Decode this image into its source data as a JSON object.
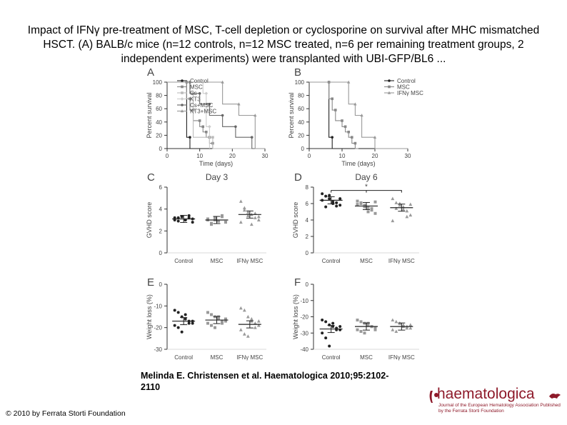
{
  "title": "Impact of IFNγ pre-treatment of MSC, T-cell depletion or cyclosporine on survival after MHC mismatched HSCT. (A) BALB/c mice (n=12 controls, n=12 MSC treated, n=6 per remaining treatment groups, 2 independent experiments) were transplanted with UBI-GFP/BL6 ...",
  "citation": "Melinda E. Christensen et al. Haematologica 2010;95:2102-2110",
  "copyright": "© 2010 by Ferrata Storti Foundation",
  "logo": {
    "name": "haematologica",
    "tagline": "Journal of the European Hematology Association Published by the Ferrata Storti Foundation"
  },
  "colors": {
    "control": "#222222",
    "msc": "#888888",
    "ifn": "#9a9a9a",
    "logo": "#8e1a2a"
  },
  "chart_data": [
    {
      "panel": "A",
      "type": "line",
      "xlabel": "Time (days)",
      "ylabel": "Percent survival",
      "xlim": [
        0,
        30
      ],
      "ylim": [
        0,
        100
      ],
      "xticks": [
        0,
        10,
        20,
        30
      ],
      "yticks": [
        0,
        20,
        40,
        60,
        80,
        100
      ],
      "series": [
        {
          "name": "Control",
          "x": [
            0,
            5,
            6,
            7,
            8,
            30
          ],
          "y": [
            100,
            100,
            17,
            0,
            0,
            0
          ]
        },
        {
          "name": "MSC",
          "x": [
            0,
            5,
            6,
            7,
            8,
            10,
            11,
            12,
            13,
            14,
            15
          ],
          "y": [
            100,
            100,
            75,
            58,
            42,
            33,
            25,
            17,
            8,
            0,
            0
          ]
        },
        {
          "name": "Cs",
          "x": [
            0,
            6,
            7,
            8,
            14,
            30
          ],
          "y": [
            100,
            100,
            83,
            17,
            0,
            0
          ]
        },
        {
          "name": "KT3",
          "x": [
            0,
            10,
            11,
            12,
            13
          ],
          "y": [
            100,
            100,
            83,
            33,
            0
          ]
        },
        {
          "name": "Cs+MSC",
          "x": [
            0,
            6,
            7,
            10,
            13,
            17,
            21,
            26,
            30
          ],
          "y": [
            100,
            100,
            83,
            67,
            50,
            33,
            17,
            0,
            0
          ]
        },
        {
          "name": "KT3+MSC",
          "x": [
            0,
            14,
            17,
            22,
            27,
            30
          ],
          "y": [
            100,
            100,
            67,
            50,
            0,
            0
          ]
        }
      ]
    },
    {
      "panel": "B",
      "type": "line",
      "xlabel": "Time (days)",
      "ylabel": "Percent survival",
      "xlim": [
        0,
        30
      ],
      "ylim": [
        0,
        100
      ],
      "xticks": [
        0,
        10,
        20,
        30
      ],
      "yticks": [
        0,
        20,
        40,
        60,
        80,
        100
      ],
      "series": [
        {
          "name": "Control",
          "x": [
            0,
            5,
            6,
            7,
            8,
            30
          ],
          "y": [
            100,
            100,
            17,
            0,
            0,
            0
          ]
        },
        {
          "name": "MSC",
          "x": [
            0,
            5,
            6,
            7,
            8,
            10,
            11,
            12,
            13,
            14,
            15
          ],
          "y": [
            100,
            100,
            75,
            58,
            42,
            33,
            25,
            17,
            8,
            0,
            0
          ]
        },
        {
          "name": "IFNγ MSC",
          "x": [
            0,
            9,
            12,
            14,
            16,
            20,
            30
          ],
          "y": [
            100,
            100,
            67,
            50,
            17,
            0,
            0
          ]
        }
      ]
    },
    {
      "panel": "C",
      "type": "scatter",
      "title": "Day 3",
      "ylabel": "GVHD score",
      "categories": [
        "Control",
        "MSC",
        "IFNγ MSC"
      ],
      "ylim": [
        0,
        6
      ],
      "yticks": [
        0,
        2,
        4,
        6
      ],
      "points": [
        [
          3.0,
          3.2,
          3.3,
          3.0,
          3.4,
          3.1,
          3.2,
          2.9,
          3.3,
          3.0,
          3.2,
          2.8
        ],
        [
          3.0,
          2.7,
          3.2,
          2.9,
          3.3,
          2.8,
          3.1,
          2.6,
          3.0,
          2.9,
          3.4,
          2.8
        ],
        [
          4.7,
          4.1,
          3.7,
          3.5,
          3.2,
          3.0,
          2.8,
          3.9,
          3.4,
          2.6,
          3.6,
          3.3
        ]
      ],
      "means": [
        3.1,
        3.0,
        3.5
      ]
    },
    {
      "panel": "D",
      "type": "scatter",
      "title": "Day 6",
      "ylabel": "GVHD score",
      "categories": [
        "Control",
        "MSC",
        "IFNγ MSC"
      ],
      "ylim": [
        0,
        8
      ],
      "yticks": [
        0,
        2,
        4,
        6,
        8
      ],
      "significance": "*",
      "points": [
        [
          7.2,
          6.9,
          6.6,
          6.2,
          6.1,
          5.8,
          6.4,
          5.6,
          7.0,
          6.0,
          5.7,
          6.6
        ],
        [
          6.3,
          6.0,
          5.8,
          5.5,
          5.2,
          4.8,
          5.9,
          6.1,
          5.6,
          5.0,
          5.4,
          6.2
        ],
        [
          6.6,
          6.1,
          5.8,
          5.6,
          5.1,
          4.6,
          3.9,
          5.4,
          6.0,
          5.3,
          4.4,
          5.9
        ]
      ],
      "means": [
        6.4,
        5.7,
        5.5
      ]
    },
    {
      "panel": "E",
      "type": "scatter",
      "ylabel": "Weight loss (%)",
      "categories": [
        "Control",
        "MSC",
        "IFNγ MSC"
      ],
      "ylim": [
        -30,
        0
      ],
      "yticks": [
        0,
        -10,
        -20,
        -30
      ],
      "points": [
        [
          -12,
          -13,
          -15,
          -16,
          -17,
          -18,
          -19,
          -20,
          -22,
          -14,
          -18,
          -17
        ],
        [
          -13,
          -14,
          -15,
          -16,
          -17,
          -17,
          -18,
          -19,
          -20,
          -15,
          -18,
          -16
        ],
        [
          -11,
          -12,
          -15,
          -17,
          -18,
          -19,
          -21,
          -23,
          -24,
          -16,
          -20,
          -17
        ]
      ],
      "means": [
        -17,
        -16.5,
        -18.5
      ]
    },
    {
      "panel": "F",
      "type": "scatter",
      "ylabel": "Weight loss (%)",
      "categories": [
        "Control",
        "MSC",
        "IFNγ MSC"
      ],
      "ylim": [
        -40,
        0
      ],
      "yticks": [
        0,
        -10,
        -20,
        -30,
        -40
      ],
      "points": [
        [
          -22,
          -23,
          -25,
          -26,
          -27,
          -28,
          -30,
          -33,
          -38,
          -24,
          -28,
          -26
        ],
        [
          -22,
          -23,
          -24,
          -25,
          -26,
          -27,
          -28,
          -29,
          -30,
          -24,
          -26,
          -28
        ],
        [
          -22,
          -23,
          -24,
          -25,
          -26,
          -27,
          -28,
          -29,
          -24,
          -26,
          -27,
          -25
        ]
      ],
      "means": [
        -27.5,
        -26,
        -26
      ]
    }
  ]
}
